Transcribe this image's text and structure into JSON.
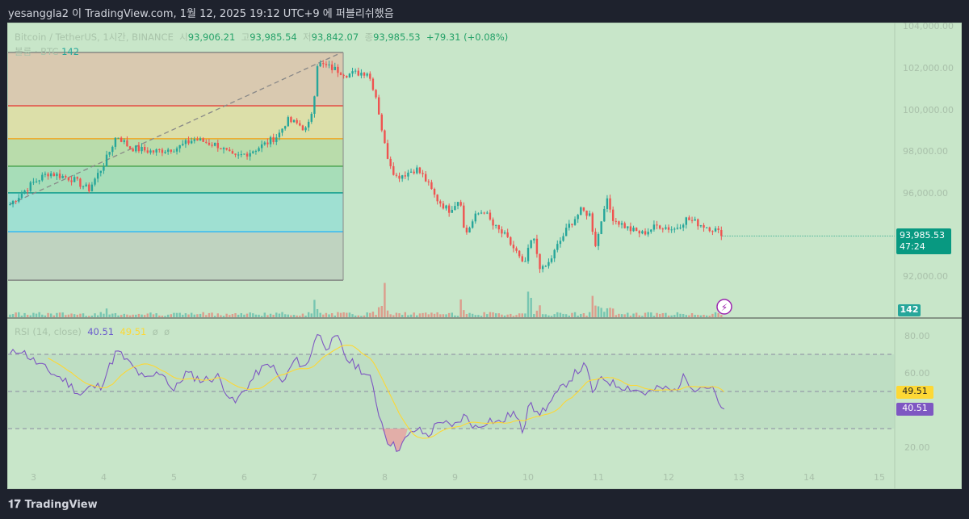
{
  "header": {
    "published": "yesanggla2 이 TradingView.com, 1월 12, 2025 19:12 UTC+9 에 퍼블리쉬했음"
  },
  "legend": {
    "symbol": "Bitcoin / TetherUS, 1시간, BINANCE",
    "o_label": "시",
    "o": "93,906.21",
    "h_label": "고",
    "h": "93,985.54",
    "l_label": "저",
    "l": "93,842.07",
    "c_label": "종",
    "c": "93,985.53",
    "change": "+79.31 (+0.08%)"
  },
  "volume_legend": {
    "label": "볼륨 · BTC",
    "value": "142"
  },
  "rsi_legend": {
    "label": "RSI (14, close)",
    "rsi": "40.51",
    "ma": "49.51",
    "e1": "ø",
    "e2": "ø"
  },
  "price_axis": [
    "104,000.00",
    "102,000.00",
    "100,000.00",
    "98,000.00",
    "96,000.00",
    "92,000.00"
  ],
  "rsi_axis": [
    "80.00",
    "60.00",
    "20.00"
  ],
  "date_axis": [
    "3",
    "4",
    "5",
    "6",
    "7",
    "8",
    "9",
    "10",
    "11",
    "12",
    "13",
    "14",
    "15"
  ],
  "price_label": {
    "price": "93,985.53",
    "countdown": "47:24"
  },
  "volume_label": "142",
  "rsi_labels": {
    "ma": "49.51",
    "rsi": "40.51"
  },
  "colors": {
    "up": "#26a69a",
    "down": "#ef5350",
    "rsi": "#7e57c2",
    "rsi_ma": "#fdd835",
    "bg": "#c8e6c9"
  },
  "footer": {
    "brand": "TradingView"
  },
  "chart_data": {
    "type": "candlestick",
    "x_unit": "day of January 2025",
    "price_keypoints": [
      [
        2.66,
        95500
      ],
      [
        2.98,
        96500
      ],
      [
        3.21,
        97000
      ],
      [
        3.55,
        96700
      ],
      [
        3.78,
        96200
      ],
      [
        4.01,
        97500
      ],
      [
        4.18,
        98800
      ],
      [
        4.36,
        98200
      ],
      [
        4.7,
        98000
      ],
      [
        5.05,
        98200
      ],
      [
        5.28,
        98600
      ],
      [
        5.62,
        98300
      ],
      [
        5.85,
        97700
      ],
      [
        6.08,
        98000
      ],
      [
        6.31,
        98400
      ],
      [
        6.48,
        98800
      ],
      [
        6.6,
        99500
      ],
      [
        6.77,
        99300
      ],
      [
        6.89,
        99000
      ],
      [
        6.98,
        100300
      ],
      [
        7.03,
        102200
      ],
      [
        7.23,
        102000
      ],
      [
        7.46,
        101700
      ],
      [
        7.75,
        101800
      ],
      [
        7.86,
        100800
      ],
      [
        8.01,
        98000
      ],
      [
        8.15,
        96800
      ],
      [
        8.32,
        97000
      ],
      [
        8.44,
        97200
      ],
      [
        8.55,
        96800
      ],
      [
        8.72,
        95800
      ],
      [
        8.9,
        95200
      ],
      [
        9.07,
        95800
      ],
      [
        9.13,
        94000
      ],
      [
        9.3,
        95000
      ],
      [
        9.41,
        95200
      ],
      [
        9.53,
        94500
      ],
      [
        9.7,
        94000
      ],
      [
        9.87,
        93200
      ],
      [
        9.97,
        92500
      ],
      [
        10.1,
        94000
      ],
      [
        10.22,
        92300
      ],
      [
        10.33,
        92700
      ],
      [
        10.45,
        93500
      ],
      [
        10.62,
        94500
      ],
      [
        10.79,
        95200
      ],
      [
        10.91,
        95000
      ],
      [
        11.0,
        93500
      ],
      [
        11.08,
        94800
      ],
      [
        11.14,
        95800
      ],
      [
        11.25,
        94800
      ],
      [
        11.48,
        94300
      ],
      [
        11.66,
        94100
      ],
      [
        11.89,
        94500
      ],
      [
        12.11,
        94300
      ],
      [
        12.29,
        94800
      ],
      [
        12.52,
        94500
      ],
      [
        12.69,
        94300
      ],
      [
        12.8,
        93985.53
      ]
    ],
    "volume_spikes": [
      [
        6.99,
        40
      ],
      [
        8.0,
        95
      ],
      [
        9.08,
        55
      ],
      [
        10.06,
        60
      ],
      [
        10.95,
        48
      ]
    ],
    "fib_levels": [
      102730,
      100190,
      98620,
      97310,
      96040,
      94190,
      91880
    ],
    "trend_line": [
      [
        2.66,
        95500
      ],
      [
        7.38,
        102730
      ]
    ],
    "rsi_keypoints": [
      [
        2.66,
        69.6
      ],
      [
        2.8,
        73
      ],
      [
        2.98,
        67
      ],
      [
        3.21,
        61
      ],
      [
        3.44,
        56
      ],
      [
        3.67,
        48
      ],
      [
        3.78,
        52
      ],
      [
        3.95,
        53
      ],
      [
        4.18,
        72
      ],
      [
        4.36,
        65
      ],
      [
        4.59,
        56
      ],
      [
        4.82,
        61
      ],
      [
        4.99,
        50
      ],
      [
        5.16,
        60
      ],
      [
        5.39,
        56
      ],
      [
        5.62,
        58
      ],
      [
        5.85,
        43
      ],
      [
        6.02,
        52
      ],
      [
        6.2,
        61
      ],
      [
        6.37,
        65
      ],
      [
        6.54,
        54
      ],
      [
        6.71,
        67
      ],
      [
        6.89,
        63
      ],
      [
        7.02,
        82
      ],
      [
        7.17,
        74
      ],
      [
        7.32,
        79
      ],
      [
        7.46,
        67
      ],
      [
        7.63,
        63
      ],
      [
        7.8,
        56
      ],
      [
        7.92,
        37
      ],
      [
        8.03,
        24
      ],
      [
        8.17,
        19
      ],
      [
        8.29,
        24
      ],
      [
        8.44,
        30
      ],
      [
        8.61,
        26
      ],
      [
        8.78,
        35
      ],
      [
        8.95,
        30
      ],
      [
        9.13,
        37
      ],
      [
        9.3,
        30
      ],
      [
        9.47,
        35
      ],
      [
        9.64,
        33
      ],
      [
        9.82,
        39
      ],
      [
        9.97,
        28
      ],
      [
        10.05,
        48
      ],
      [
        10.16,
        37
      ],
      [
        10.33,
        43
      ],
      [
        10.56,
        54
      ],
      [
        10.74,
        61
      ],
      [
        10.85,
        64
      ],
      [
        10.97,
        48
      ],
      [
        11.08,
        58
      ],
      [
        11.25,
        54
      ],
      [
        11.48,
        52
      ],
      [
        11.71,
        49
      ],
      [
        11.94,
        52
      ],
      [
        12.11,
        50
      ],
      [
        12.26,
        58
      ],
      [
        12.4,
        52
      ],
      [
        12.57,
        53
      ],
      [
        12.69,
        50
      ],
      [
        12.78,
        39
      ],
      [
        12.83,
        40.51
      ]
    ],
    "rsi_bands": [
      70,
      50,
      30
    ],
    "price_range": [
      91500,
      104200
    ],
    "rsi_range": [
      15,
      88
    ]
  }
}
